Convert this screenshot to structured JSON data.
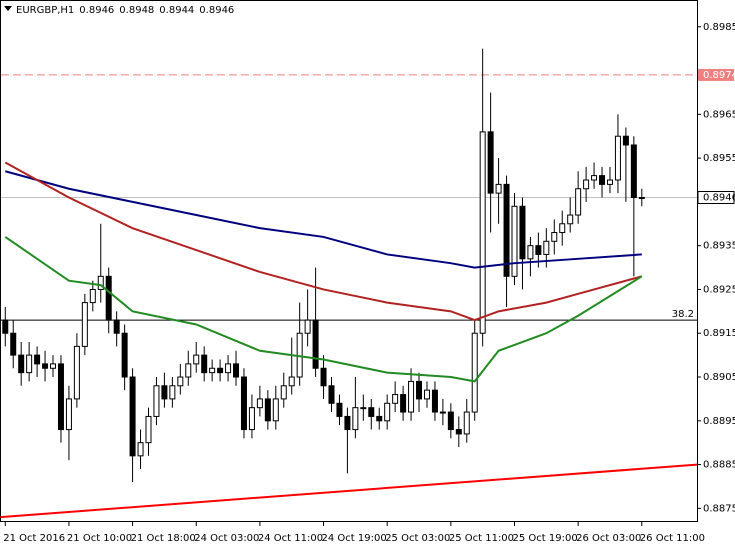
{
  "chart_data": {
    "type": "candlestick",
    "symbol": "EURGBP,H1",
    "categories": [
      "21 Oct 2016",
      null,
      null,
      null,
      null,
      null,
      null,
      null,
      "21 Oct 10:00",
      null,
      null,
      null,
      null,
      null,
      null,
      null,
      "21 Oct 18:00",
      null,
      null,
      null,
      null,
      null,
      null,
      null,
      "24 Oct 03:00",
      null,
      null,
      null,
      null,
      null,
      null,
      null,
      "24 Oct 11:00",
      null,
      null,
      null,
      null,
      null,
      null,
      null,
      "24 Oct 19:00",
      null,
      null,
      null,
      null,
      null,
      null,
      null,
      "25 Oct 03:00",
      null,
      null,
      null,
      null,
      null,
      null,
      null,
      "25 Oct 11:00",
      null,
      null,
      null,
      null,
      null,
      null,
      null,
      "25 Oct 19:00",
      null,
      null,
      null,
      null,
      null,
      null,
      null,
      "26 Oct 03:00",
      null,
      null,
      null,
      null,
      null,
      null,
      null,
      "26 Oct 11:00"
    ],
    "open": [
      0.8918,
      0.8915,
      0.891,
      0.8906,
      0.891,
      0.8908,
      0.8907,
      0.8908,
      0.8893,
      0.89,
      0.8912,
      0.8922,
      0.8925,
      0.8928,
      0.8918,
      0.8915,
      0.8905,
      0.8887,
      0.889,
      0.8896,
      0.8903,
      0.89,
      0.8903,
      0.8905,
      0.8908,
      0.891,
      0.8906,
      0.8907,
      0.8906,
      0.8908,
      0.8905,
      0.8893,
      0.8898,
      0.89,
      0.8895,
      0.89,
      0.8903,
      0.8905,
      0.8915,
      0.8918,
      0.8907,
      0.8903,
      0.8899,
      0.8896,
      0.8893,
      0.8898,
      0.8898,
      0.8896,
      0.8895,
      0.8899,
      0.8901,
      0.8897,
      0.8904,
      0.89,
      0.8902,
      0.8897,
      0.8897,
      0.8893,
      0.8892,
      0.8897,
      0.8915,
      0.8961,
      0.8947,
      0.8949,
      0.8928,
      0.8944,
      0.8932,
      0.8935,
      0.8933,
      0.8936,
      0.8938,
      0.894,
      0.8942,
      0.8948,
      0.895,
      0.8951,
      0.8949,
      0.895,
      0.896,
      0.8958,
      0.8946
    ],
    "high": [
      0.8921,
      0.8918,
      0.8913,
      0.8913,
      0.8912,
      0.8911,
      0.891,
      0.891,
      0.8903,
      0.8915,
      0.8924,
      0.8927,
      0.894,
      0.893,
      0.892,
      0.8917,
      0.8907,
      0.8893,
      0.8898,
      0.8905,
      0.8906,
      0.8905,
      0.8908,
      0.8911,
      0.8913,
      0.8912,
      0.8909,
      0.8909,
      0.891,
      0.8911,
      0.8907,
      0.8901,
      0.8903,
      0.8902,
      0.8903,
      0.8906,
      0.8914,
      0.8922,
      0.8925,
      0.893,
      0.891,
      0.8905,
      0.8901,
      0.8898,
      0.8905,
      0.8901,
      0.89,
      0.8898,
      0.8901,
      0.8904,
      0.8903,
      0.8907,
      0.8906,
      0.8904,
      0.8904,
      0.89,
      0.8899,
      0.8896,
      0.89,
      0.8918,
      0.898,
      0.897,
      0.8955,
      0.8951,
      0.8947,
      0.8946,
      0.8937,
      0.8938,
      0.8939,
      0.8941,
      0.8943,
      0.8946,
      0.8952,
      0.8953,
      0.8954,
      0.8953,
      0.8953,
      0.8965,
      0.8962,
      0.896,
      0.8948
    ],
    "low": [
      0.8912,
      0.8907,
      0.8903,
      0.8904,
      0.8905,
      0.8904,
      0.8905,
      0.889,
      0.8886,
      0.8898,
      0.891,
      0.892,
      0.8922,
      0.8915,
      0.8912,
      0.8902,
      0.8881,
      0.8884,
      0.8887,
      0.8894,
      0.8898,
      0.8898,
      0.8901,
      0.8903,
      0.8906,
      0.8904,
      0.8904,
      0.8904,
      0.8904,
      0.8903,
      0.8891,
      0.8891,
      0.8896,
      0.8893,
      0.8893,
      0.8898,
      0.8901,
      0.8903,
      0.8912,
      0.8905,
      0.89,
      0.8897,
      0.8894,
      0.8883,
      0.8891,
      0.8895,
      0.8893,
      0.8893,
      0.8893,
      0.8897,
      0.8895,
      0.8895,
      0.8897,
      0.8898,
      0.8895,
      0.8894,
      0.8891,
      0.8889,
      0.889,
      0.8895,
      0.8912,
      0.8938,
      0.894,
      0.8921,
      0.8926,
      0.8925,
      0.8928,
      0.893,
      0.893,
      0.8933,
      0.8935,
      0.8938,
      0.894,
      0.8945,
      0.8948,
      0.8946,
      0.8947,
      0.8947,
      0.8945,
      0.8928,
      0.8944
    ],
    "close": [
      0.8915,
      0.891,
      0.8906,
      0.891,
      0.8908,
      0.8907,
      0.8908,
      0.8893,
      0.89,
      0.8912,
      0.8922,
      0.8925,
      0.8928,
      0.8918,
      0.8915,
      0.8905,
      0.8887,
      0.889,
      0.8896,
      0.8903,
      0.89,
      0.8903,
      0.8905,
      0.8908,
      0.891,
      0.8906,
      0.8907,
      0.8906,
      0.8908,
      0.8905,
      0.8893,
      0.8898,
      0.89,
      0.8895,
      0.89,
      0.8903,
      0.8905,
      0.8915,
      0.8918,
      0.8907,
      0.8903,
      0.8899,
      0.8896,
      0.8893,
      0.8898,
      0.8898,
      0.8896,
      0.8895,
      0.8899,
      0.8901,
      0.8897,
      0.8904,
      0.89,
      0.8902,
      0.8897,
      0.8897,
      0.8893,
      0.8892,
      0.8897,
      0.8915,
      0.8961,
      0.8947,
      0.8949,
      0.8928,
      0.8944,
      0.8932,
      0.8935,
      0.8933,
      0.8936,
      0.8938,
      0.894,
      0.8942,
      0.8948,
      0.895,
      0.8951,
      0.8949,
      0.895,
      0.896,
      0.8958,
      0.8946,
      0.8946
    ],
    "bull_color": "#ffffff",
    "bear_color": "#000000",
    "xlim": [
      -0.6,
      87
    ],
    "ylim": [
      0.8872,
      0.8991
    ],
    "yticks": [
      0.8985,
      0.8965,
      0.8955,
      0.8935,
      0.8925,
      0.8915,
      0.8905,
      0.8895,
      0.8885,
      0.8875
    ],
    "series": [
      {
        "color": "#00007f",
        "x": [
          0,
          8,
          16,
          24,
          32,
          40,
          48,
          56,
          59,
          64,
          72,
          80
        ],
        "values": [
          0.8952,
          0.8948,
          0.8945,
          0.8942,
          0.8939,
          0.8937,
          0.8933,
          0.8931,
          0.893,
          0.8931,
          0.8932,
          0.8933
        ]
      },
      {
        "color": "#b22222",
        "x": [
          0,
          8,
          16,
          24,
          32,
          40,
          48,
          56,
          59,
          62,
          68,
          72,
          80
        ],
        "values": [
          0.8954,
          0.8946,
          0.8939,
          0.8934,
          0.8929,
          0.8925,
          0.8922,
          0.892,
          0.8918,
          0.892,
          0.8922,
          0.8924,
          0.8928
        ]
      },
      {
        "color": "#228b22",
        "x": [
          0,
          4,
          8,
          12,
          16,
          24,
          32,
          40,
          48,
          56,
          59,
          62,
          68,
          72,
          80
        ],
        "values": [
          0.8937,
          0.8932,
          0.8927,
          0.8926,
          0.892,
          0.8917,
          0.8911,
          0.8909,
          0.8906,
          0.8905,
          0.8904,
          0.8911,
          0.8915,
          0.8919,
          0.8928
        ]
      }
    ],
    "trendline": {
      "color": "#ff0000",
      "x": [
        -0.6,
        87
      ],
      "values": [
        0.8873,
        0.8885
      ]
    },
    "fib_level": {
      "label": "38.2",
      "value": 0.8918,
      "color": "#000000"
    },
    "alert_level": {
      "value": 0.8974,
      "color": "#f08080",
      "dashed": true
    },
    "price_line_color": "#c0c0c0"
  }
}
